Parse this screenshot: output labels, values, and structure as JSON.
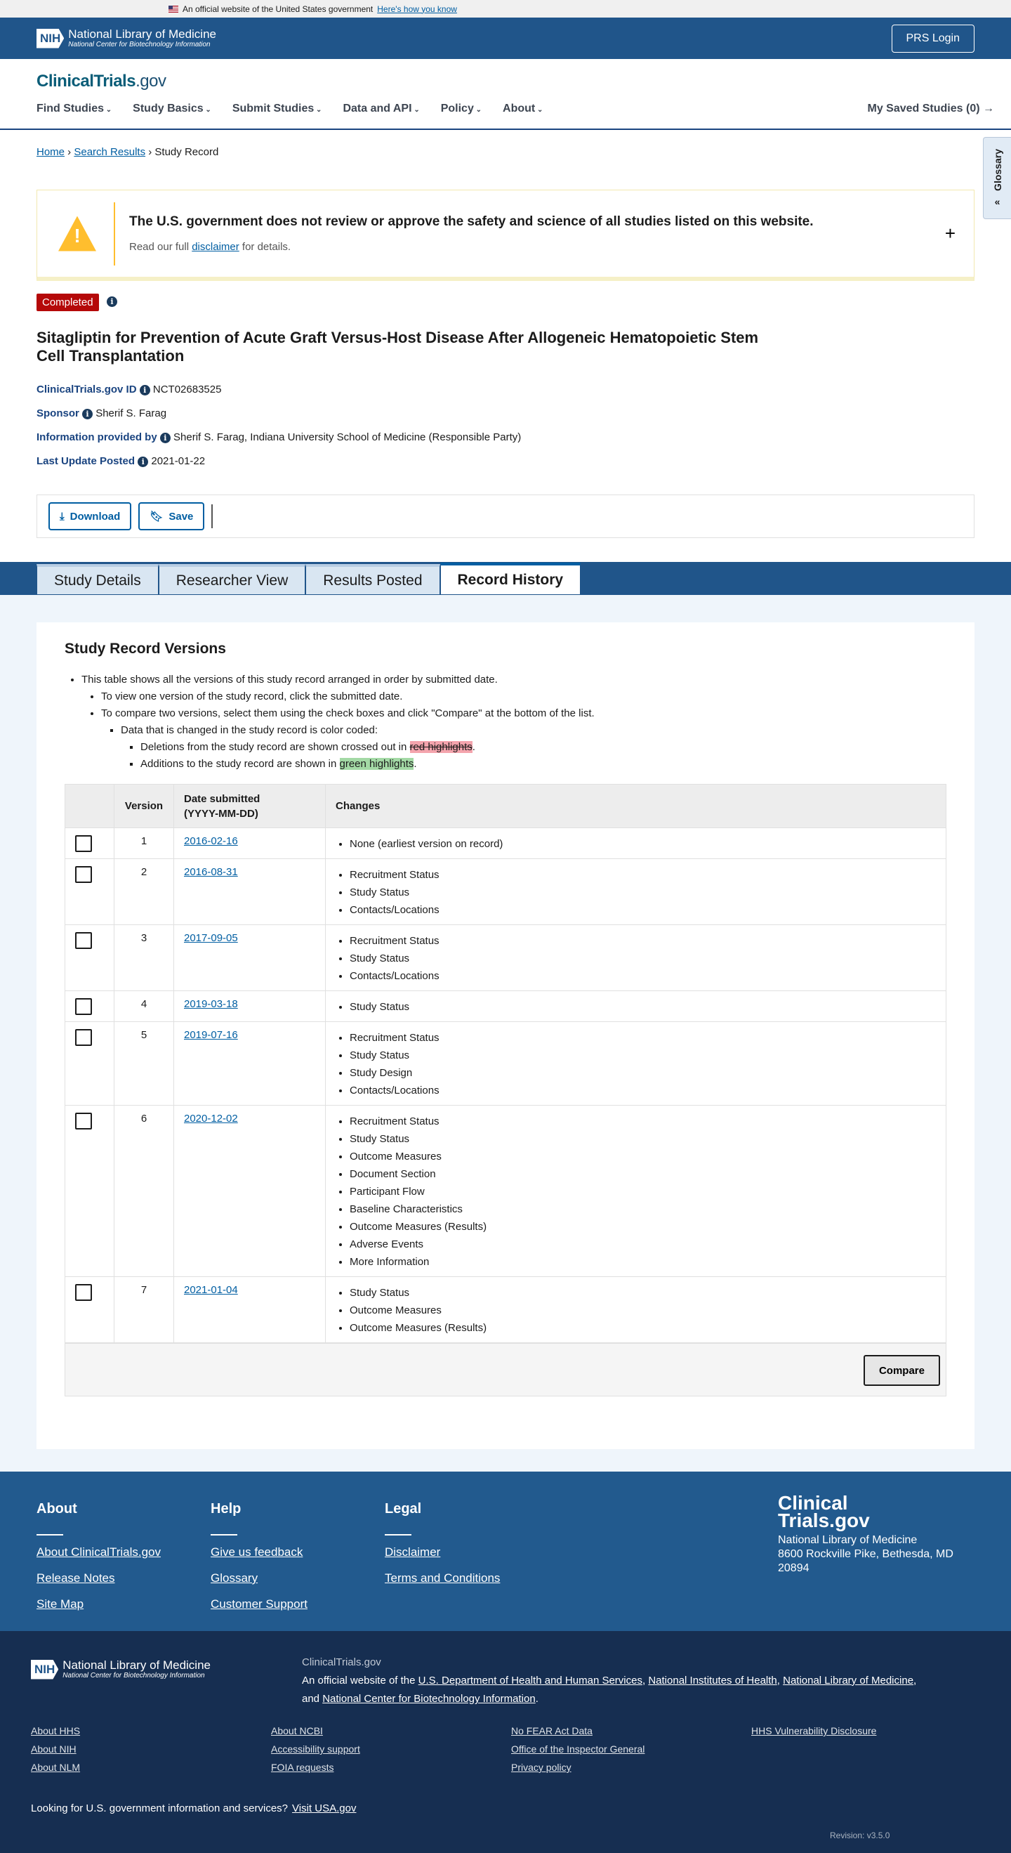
{
  "gov_banner": {
    "text": "An official website of the United States government",
    "link": "Here's how you know"
  },
  "nih_header": {
    "logo_mark": "NIH",
    "logo_name": "National Library of Medicine",
    "logo_sub": "National Center for Biotechnology Information",
    "prs_login": "PRS Login"
  },
  "site": {
    "logo_main": "ClinicalTrials",
    "logo_suffix": ".gov"
  },
  "nav": {
    "items": [
      "Find Studies",
      "Study Basics",
      "Submit Studies",
      "Data and API",
      "Policy",
      "About"
    ],
    "saved": "My Saved Studies (0)"
  },
  "breadcrumb": {
    "home": "Home",
    "search": "Search Results",
    "current": "Study Record"
  },
  "glossary": {
    "label": "Glossary"
  },
  "disclaimer": {
    "heading": "The U.S. government does not review or approve the safety and science of all studies listed on this website.",
    "pre": "Read our full ",
    "link": "disclaimer",
    "post": " for details."
  },
  "study": {
    "status": "Completed",
    "status_color": "#b50909",
    "title": "Sitagliptin for Prevention of Acute Graft Versus-Host Disease After Allogeneic Hematopoietic Stem Cell Transplantation",
    "meta": [
      {
        "label": "ClinicalTrials.gov ID",
        "value": "NCT02683525"
      },
      {
        "label": "Sponsor",
        "value": "Sherif S. Farag"
      },
      {
        "label": "Information provided by",
        "value": "Sherif S. Farag, Indiana University School of Medicine (Responsible Party)"
      },
      {
        "label": "Last Update Posted",
        "value": "2021-01-22"
      }
    ]
  },
  "actions": {
    "download": "Download",
    "save": "Save"
  },
  "tabs": [
    {
      "label": "Study Details"
    },
    {
      "label": "Researcher View"
    },
    {
      "label": "Results Posted"
    },
    {
      "label": "Record History",
      "active": true
    }
  ],
  "versions": {
    "heading": "Study Record Versions",
    "intro": [
      "This table shows all the versions of this study record arranged in order by submitted date.",
      "To view one version of the study record, click the submitted date.",
      "To compare two versions, select them using the check boxes and click \"Compare\" at the bottom of the list.",
      "Data that is changed in the study record is color coded:"
    ],
    "del_pre": "Deletions from the study record are shown crossed out in ",
    "del_hl": "red highlights",
    "add_pre": "Additions to the study record are shown in ",
    "add_hl": "green highlights",
    "dot": ".",
    "headers": {
      "version": "Version",
      "date": "Date submitted",
      "date_fmt": "(YYYY-MM-DD)",
      "changes": "Changes"
    },
    "rows": [
      {
        "version": "1",
        "date": "2016-02-16",
        "changes": [
          "None (earliest version on record)"
        ]
      },
      {
        "version": "2",
        "date": "2016-08-31",
        "changes": [
          "Recruitment Status",
          "Study Status",
          "Contacts/Locations"
        ]
      },
      {
        "version": "3",
        "date": "2017-09-05",
        "changes": [
          "Recruitment Status",
          "Study Status",
          "Contacts/Locations"
        ]
      },
      {
        "version": "4",
        "date": "2019-03-18",
        "changes": [
          "Study Status"
        ]
      },
      {
        "version": "5",
        "date": "2019-07-16",
        "changes": [
          "Recruitment Status",
          "Study Status",
          "Study Design",
          "Contacts/Locations"
        ]
      },
      {
        "version": "6",
        "date": "2020-12-02",
        "changes": [
          "Recruitment Status",
          "Study Status",
          "Outcome Measures",
          "Document Section",
          "Participant Flow",
          "Baseline Characteristics",
          "Outcome Measures (Results)",
          "Adverse Events",
          "More Information"
        ]
      },
      {
        "version": "7",
        "date": "2021-01-04",
        "changes": [
          "Study Status",
          "Outcome Measures",
          "Outcome Measures (Results)"
        ]
      }
    ],
    "compare": "Compare"
  },
  "footer": {
    "cols": [
      {
        "title": "About",
        "links": [
          "About ClinicalTrials.gov",
          "Release Notes",
          "Site Map"
        ]
      },
      {
        "title": "Help",
        "links": [
          "Give us feedback",
          "Glossary",
          "Customer Support"
        ]
      },
      {
        "title": "Legal",
        "links": [
          "Disclaimer",
          "Terms and Conditions"
        ]
      }
    ],
    "logo_l1": "Clinical",
    "logo_l2": "Trials.gov",
    "org": "National Library of Medicine",
    "addr1": "8600 Rockville Pike, Bethesda, MD",
    "addr2": "20894"
  },
  "footer2": {
    "site": "ClinicalTrials.gov",
    "pre": "An official website of the ",
    "l1": "U.S. Department of Health and Human Services",
    "l2": "National Institutes of Health",
    "l3": "National Library of Medicine",
    "and": "and ",
    "l4": "National Center for Biotechnology Information",
    "links": [
      "About HHS",
      "About NCBI",
      "No FEAR Act Data",
      "HHS Vulnerability Disclosure",
      "About NIH",
      "Accessibility support",
      "Office of the Inspector General",
      "",
      "About NLM",
      "FOIA requests",
      "Privacy policy",
      ""
    ],
    "looking": "Looking for U.S. government information and services?",
    "usa": "Visit USA.gov",
    "revision": "Revision: v3.5.0"
  }
}
